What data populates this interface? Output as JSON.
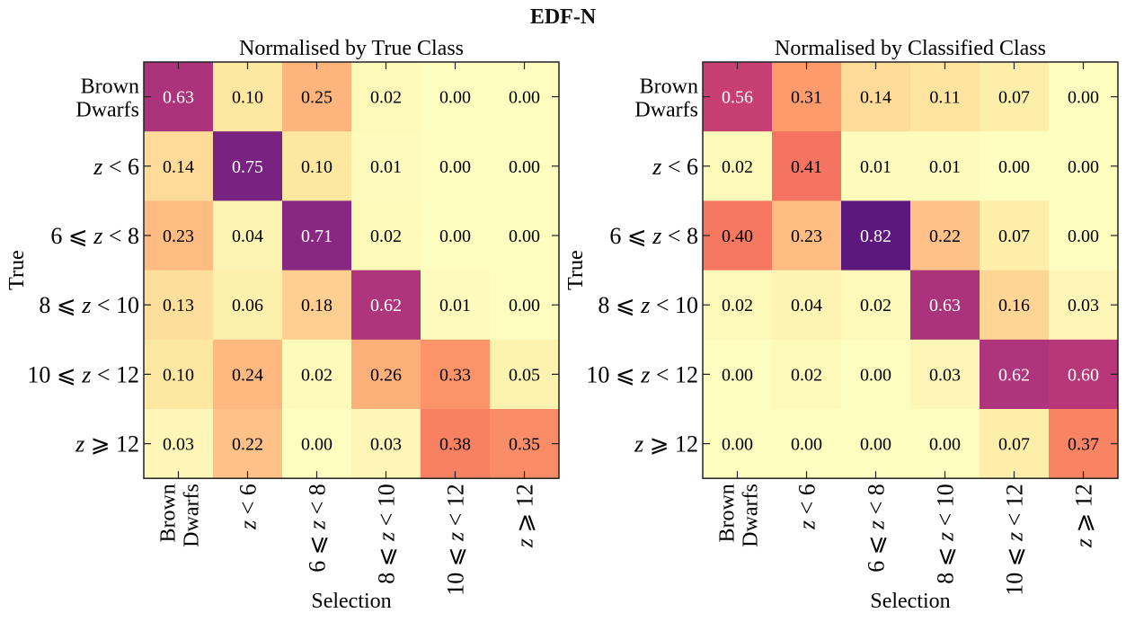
{
  "chart_data": {
    "type": "heatmap",
    "suptitle": "EDF-N",
    "row_labels": [
      [
        "Brown",
        "Dwarfs"
      ],
      [
        "z < 6"
      ],
      [
        "6 ⩽ z < 8"
      ],
      [
        "8 ⩽ z < 10"
      ],
      [
        "10 ⩽ z < 12"
      ],
      [
        "z ⩾ 12"
      ]
    ],
    "col_labels": [
      [
        "Brown",
        "Dwarfs"
      ],
      [
        "z < 6"
      ],
      [
        "6 ⩽ z < 8"
      ],
      [
        "8 ⩽ z < 10"
      ],
      [
        "10 ⩽ z < 12"
      ],
      [
        "z ⩾ 12"
      ]
    ],
    "colormap": "magma_r",
    "vmin": 0,
    "vmax": 1,
    "panels": [
      {
        "title": "Normalised by True Class",
        "xlabel": "Selection",
        "ylabel": "True",
        "values": [
          [
            0.63,
            0.1,
            0.25,
            0.02,
            0.0,
            0.0
          ],
          [
            0.14,
            0.75,
            0.1,
            0.01,
            0.0,
            0.0
          ],
          [
            0.23,
            0.04,
            0.71,
            0.02,
            0.0,
            0.0
          ],
          [
            0.13,
            0.06,
            0.18,
            0.62,
            0.01,
            0.0
          ],
          [
            0.1,
            0.24,
            0.02,
            0.26,
            0.33,
            0.05
          ],
          [
            0.03,
            0.22,
            0.0,
            0.03,
            0.38,
            0.35
          ]
        ]
      },
      {
        "title": "Normalised by Classified Class",
        "xlabel": "Selection",
        "ylabel": "True",
        "values": [
          [
            0.56,
            0.31,
            0.14,
            0.11,
            0.07,
            0.0
          ],
          [
            0.02,
            0.41,
            0.01,
            0.01,
            0.0,
            0.0
          ],
          [
            0.4,
            0.23,
            0.82,
            0.22,
            0.07,
            0.0
          ],
          [
            0.02,
            0.04,
            0.02,
            0.63,
            0.16,
            0.03
          ],
          [
            0.0,
            0.02,
            0.0,
            0.03,
            0.62,
            0.6
          ],
          [
            0.0,
            0.0,
            0.0,
            0.0,
            0.07,
            0.37
          ]
        ]
      }
    ]
  }
}
